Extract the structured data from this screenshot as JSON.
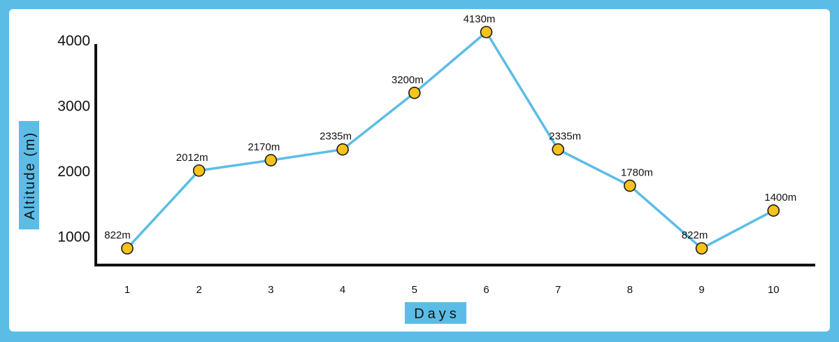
{
  "chart_data": {
    "type": "line",
    "title": "",
    "xlabel": "Days",
    "ylabel": "Altitude (m)",
    "categories": [
      "1",
      "2",
      "3",
      "4",
      "5",
      "6",
      "7",
      "8",
      "9",
      "10"
    ],
    "series": [
      {
        "values": [
          822,
          2012,
          2170,
          2335,
          3200,
          4130,
          2335,
          1780,
          822,
          1400
        ],
        "labels": [
          "822m",
          "2012m",
          "2170m",
          "2335m",
          "3200m",
          "4130m",
          "2335m",
          "1780m",
          "822m",
          "1400m"
        ]
      }
    ],
    "yticks": [
      1000,
      2000,
      3000,
      4000
    ],
    "ylim": [
      620,
      4150
    ],
    "grid": false,
    "colors": {
      "background": "#5bbde6",
      "line": "#5bbde6",
      "marker_fill": "#f6c21c",
      "marker_stroke": "#1a1a1a",
      "axis": "#111111",
      "title_box": "#5bbde6"
    }
  }
}
